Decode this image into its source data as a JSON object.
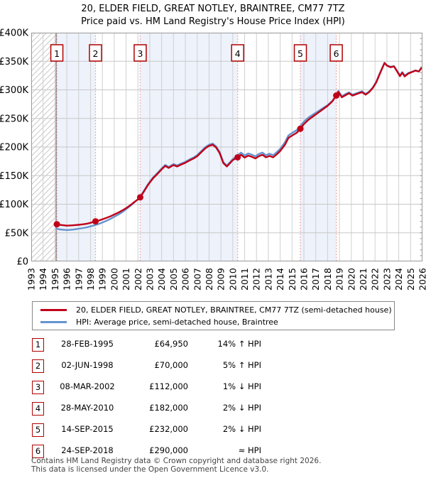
{
  "title": "20, ELDER FIELD, GREAT NOTLEY, BRAINTREE, CM77 7TZ",
  "subtitle": "Price paid vs. HM Land Registry's House Price Index (HPI)",
  "legend": [
    {
      "label": "20, ELDER FIELD, GREAT NOTLEY, BRAINTREE, CM77 7TZ (semi-detached house)",
      "color": "#c00018"
    },
    {
      "label": "HPI: Average price, semi-detached house, Braintree",
      "color": "#6593cf"
    }
  ],
  "sales": [
    {
      "num": "1",
      "date": "28-FEB-1995",
      "price": "£64,950",
      "hpi_rel": "14% ↑ HPI"
    },
    {
      "num": "2",
      "date": "02-JUN-1998",
      "price": "£70,000",
      "hpi_rel": "5% ↑ HPI"
    },
    {
      "num": "3",
      "date": "08-MAR-2002",
      "price": "£112,000",
      "hpi_rel": "1% ↓ HPI"
    },
    {
      "num": "4",
      "date": "28-MAY-2010",
      "price": "£182,000",
      "hpi_rel": "2% ↓ HPI"
    },
    {
      "num": "5",
      "date": "14-SEP-2015",
      "price": "£232,000",
      "hpi_rel": "2% ↓ HPI"
    },
    {
      "num": "6",
      "date": "24-SEP-2018",
      "price": "£290,000",
      "hpi_rel": "≈ HPI"
    }
  ],
  "footer": {
    "line1": "Contains HM Land Registry data © Crown copyright and database right 2026.",
    "line2": "This data is licensed under the Open Government Licence v3.0."
  },
  "chart_data": {
    "type": "line",
    "title": "20, ELDER FIELD, GREAT NOTLEY, BRAINTREE, CM77 7TZ",
    "subtitle": "Price paid vs. HM Land Registry's House Price Index (HPI)",
    "units": "GBP_thousands",
    "x_axis": {
      "min": 1993,
      "max": 2026,
      "tick_labels": [
        "1993",
        "1994",
        "1995",
        "1996",
        "1997",
        "1998",
        "1999",
        "2000",
        "2001",
        "2002",
        "2003",
        "2004",
        "2005",
        "2006",
        "2007",
        "2008",
        "2009",
        "2010",
        "2011",
        "2012",
        "2013",
        "2014",
        "2015",
        "2016",
        "2017",
        "2018",
        "2019",
        "2020",
        "2021",
        "2022",
        "2023",
        "2024",
        "2025",
        "2026"
      ]
    },
    "y_axis": {
      "min": 0,
      "max": 400,
      "tick_step": 50,
      "minor_tick_step": 10,
      "tick_labels": [
        "£0",
        "£50K",
        "£100K",
        "£150K",
        "£200K",
        "£250K",
        "£300K",
        "£350K",
        "£400K"
      ]
    },
    "grid": true,
    "legend_position": "below",
    "hatch_region": [
      1993,
      1995.16
    ],
    "shaded_bands": [
      [
        1995.16,
        1998.42
      ],
      [
        2002.19,
        2010.41
      ],
      [
        2015.7,
        2018.73
      ]
    ],
    "band_color": "#edf2fb",
    "sale_line_color": "#f28f8f",
    "x": [
      1995.16,
      1995.4,
      1995.7,
      1996,
      1996.3,
      1996.6,
      1997,
      1997.4,
      1997.7,
      1998,
      1998.42,
      1998.7,
      1999,
      1999.4,
      1999.7,
      2000,
      2000.4,
      2000.7,
      2001,
      2001.4,
      2001.7,
      2002,
      2002.19,
      2002.5,
      2002.8,
      2003,
      2003.3,
      2003.6,
      2004,
      2004.3,
      2004.6,
      2004.8,
      2005,
      2005.3,
      2005.6,
      2006,
      2006.4,
      2006.7,
      2007,
      2007.4,
      2007.7,
      2008,
      2008.3,
      2008.6,
      2008.9,
      2009.2,
      2009.5,
      2009.8,
      2010,
      2010.41,
      2010.7,
      2011,
      2011.3,
      2011.6,
      2011.9,
      2012.2,
      2012.5,
      2012.8,
      2013.1,
      2013.4,
      2013.7,
      2014,
      2014.4,
      2014.7,
      2015,
      2015.4,
      2015.7,
      2016,
      2016.4,
      2016.8,
      2017.2,
      2017.6,
      2018,
      2018.4,
      2018.73,
      2018.9,
      2019.2,
      2019.5,
      2019.8,
      2020.1,
      2020.5,
      2020.9,
      2021.2,
      2021.5,
      2021.8,
      2022.1,
      2022.4,
      2022.8,
      2023,
      2023.3,
      2023.6,
      2023.9,
      2024.1,
      2024.3,
      2024.5,
      2024.8,
      2025.1,
      2025.4,
      2025.7,
      2025.9
    ],
    "series": [
      {
        "name": "20, ELDER FIELD, GREAT NOTLEY, BRAINTREE, CM77 7TZ (semi-detached house)",
        "color": "#c00018",
        "width": 2.4,
        "values": [
          65,
          63.8,
          63.2,
          62.5,
          62.8,
          63.2,
          64,
          65,
          66,
          67.5,
          70,
          71.5,
          73.5,
          76.5,
          79,
          82,
          86,
          89.5,
          93,
          99,
          104,
          108.5,
          112,
          122,
          132,
          138,
          146,
          152,
          161,
          167,
          163.5,
          166,
          168.5,
          166,
          169,
          172.5,
          177,
          180,
          184,
          192,
          198,
          202,
          204,
          199,
          189,
          172,
          166,
          172.5,
          177,
          182,
          186.5,
          181.5,
          185,
          183,
          180,
          184,
          186.5,
          182,
          184.5,
          182,
          187,
          193,
          204,
          216,
          220,
          225,
          232,
          240,
          248,
          254,
          260,
          266,
          272,
          280,
          290,
          296.5,
          287,
          290.5,
          294,
          290,
          293,
          296,
          291.5,
          296,
          303,
          313,
          328,
          347,
          342.5,
          339.5,
          341,
          331,
          324,
          330,
          323.5,
          328.5,
          331,
          333.5,
          332,
          338
        ]
      },
      {
        "name": "HPI: Average price, semi-detached house, Braintree",
        "color": "#6593cf",
        "width": 2.4,
        "values": [
          57,
          56,
          55.4,
          54.8,
          55.2,
          55.8,
          57.1,
          58.4,
          59.6,
          61.4,
          63.6,
          65.6,
          68.1,
          71.6,
          74.6,
          78,
          82.5,
          86.5,
          91.2,
          97.8,
          103.3,
          108.7,
          113.1,
          123.2,
          133.3,
          139.4,
          147.5,
          153.5,
          162.6,
          168.7,
          165.2,
          167.7,
          170.2,
          167.7,
          170.7,
          174.2,
          178.8,
          181.8,
          185.9,
          194,
          200,
          204.1,
          206.1,
          201,
          190.9,
          173.7,
          167.7,
          174.2,
          178.8,
          185.7,
          190.3,
          185.2,
          188.8,
          186.7,
          183.7,
          187.8,
          190.3,
          185.7,
          188.3,
          185.7,
          190.8,
          196.9,
          208.2,
          220.4,
          224.5,
          229.6,
          236.7,
          244.4,
          251.9,
          257.3,
          262.6,
          268,
          273.3,
          280.6,
          290,
          298,
          289,
          292.5,
          295.5,
          291.5,
          294.5,
          297.5,
          293,
          297,
          304,
          314,
          329,
          347.5,
          343,
          340.5,
          341.5,
          332,
          325.5,
          331,
          325,
          329.5,
          331.5,
          334,
          332.5,
          338
        ]
      }
    ],
    "sale_markers": [
      {
        "num": "1",
        "year": 1995.16,
        "value": 64.95
      },
      {
        "num": "2",
        "year": 1998.42,
        "value": 70
      },
      {
        "num": "3",
        "year": 2002.19,
        "value": 112
      },
      {
        "num": "4",
        "year": 2010.41,
        "value": 182
      },
      {
        "num": "5",
        "year": 2015.7,
        "value": 232
      },
      {
        "num": "6",
        "year": 2018.73,
        "value": 290
      }
    ]
  }
}
